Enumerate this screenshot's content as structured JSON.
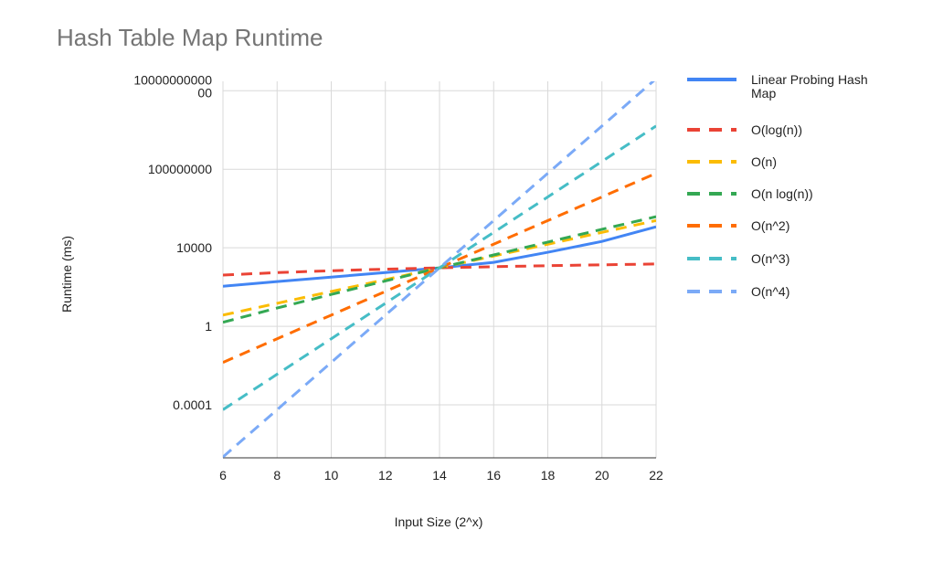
{
  "chart_data": {
    "type": "line",
    "title": "Hash Table Map Runtime",
    "x_label": "Input Size (2^x)",
    "y_label": "Runtime (ms)",
    "x": [
      6,
      8,
      10,
      12,
      14,
      16,
      18,
      20,
      22
    ],
    "xlim": [
      6,
      22
    ],
    "xticks": [
      6,
      8,
      10,
      12,
      14,
      16,
      18,
      20,
      22
    ],
    "ylim": [
      2e-07,
      3000000000000
    ],
    "yticks": [
      0.0001,
      1,
      10000,
      100000000,
      1000000000000
    ],
    "y_scale": "log",
    "grid": true,
    "legend": "right",
    "series": [
      {
        "name": "Linear Probing Hash Map",
        "color": "#4285f4",
        "line_style": "solid",
        "values": [
          110,
          190,
          320,
          550,
          950,
          1800,
          5900,
          21000,
          117000
        ]
      },
      {
        "name": "O(log(n))",
        "color": "#ea4335",
        "line_style": "dashed",
        "values": [
          407,
          543,
          679,
          814,
          950,
          1086,
          1221,
          1357,
          1493
        ]
      },
      {
        "name": "O(n)",
        "color": "#fbbc04",
        "line_style": "dashed",
        "values": [
          3.71,
          14.8,
          59.4,
          237.5,
          950,
          3800,
          15200,
          60800,
          243200
        ]
      },
      {
        "name": "O(n log(n))",
        "color": "#34a853",
        "line_style": "dashed",
        "values": [
          1.6,
          8.5,
          42,
          204,
          950,
          4300,
          19500,
          87000,
          382000
        ]
      },
      {
        "name": "O(n^2)",
        "color": "#ff6d01",
        "line_style": "dashed",
        "values": [
          0.0145,
          0.232,
          3.71,
          59.4,
          950,
          15200,
          243200,
          3890000,
          62300000
        ]
      },
      {
        "name": "O(n^3)",
        "color": "#46bdc6",
        "line_style": "dashed",
        "values": [
          5.66e-05,
          0.00362,
          0.232,
          14.8,
          950,
          60800,
          3890000,
          249000000,
          15900000000
        ]
      },
      {
        "name": "O(n^4)",
        "color": "#7baaf7",
        "line_style": "dashed",
        "values": [
          2.21e-07,
          5.66e-05,
          0.0145,
          3.71,
          950,
          243200,
          62300000,
          15900000000,
          4080000000000
        ]
      }
    ]
  }
}
